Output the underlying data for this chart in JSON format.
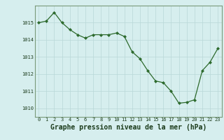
{
  "x": [
    0,
    1,
    2,
    3,
    4,
    5,
    6,
    7,
    8,
    9,
    10,
    11,
    12,
    13,
    14,
    15,
    16,
    17,
    18,
    19,
    20,
    21,
    22,
    23
  ],
  "y": [
    1015.0,
    1015.1,
    1015.6,
    1015.0,
    1014.6,
    1014.3,
    1014.1,
    1014.3,
    1014.3,
    1014.3,
    1014.4,
    1014.2,
    1013.3,
    1012.9,
    1012.2,
    1011.6,
    1011.5,
    1011.0,
    1010.3,
    1010.35,
    1010.5,
    1012.2,
    1012.7,
    1013.5
  ],
  "line_color": "#2d6a2d",
  "marker_color": "#2d6a2d",
  "bg_color": "#d6eeee",
  "grid_color": "#b8d8d8",
  "xlabel": "Graphe pression niveau de la mer (hPa)",
  "ylim": [
    1009.5,
    1016.0
  ],
  "xlim": [
    -0.5,
    23.5
  ],
  "yticks": [
    1010,
    1011,
    1012,
    1013,
    1014,
    1015
  ],
  "xticks": [
    0,
    1,
    2,
    3,
    4,
    5,
    6,
    7,
    8,
    9,
    10,
    11,
    12,
    13,
    14,
    15,
    16,
    17,
    18,
    19,
    20,
    21,
    22,
    23
  ],
  "tick_fontsize": 5.0,
  "xlabel_fontsize": 7.0,
  "spine_color": "#7a9a7a"
}
